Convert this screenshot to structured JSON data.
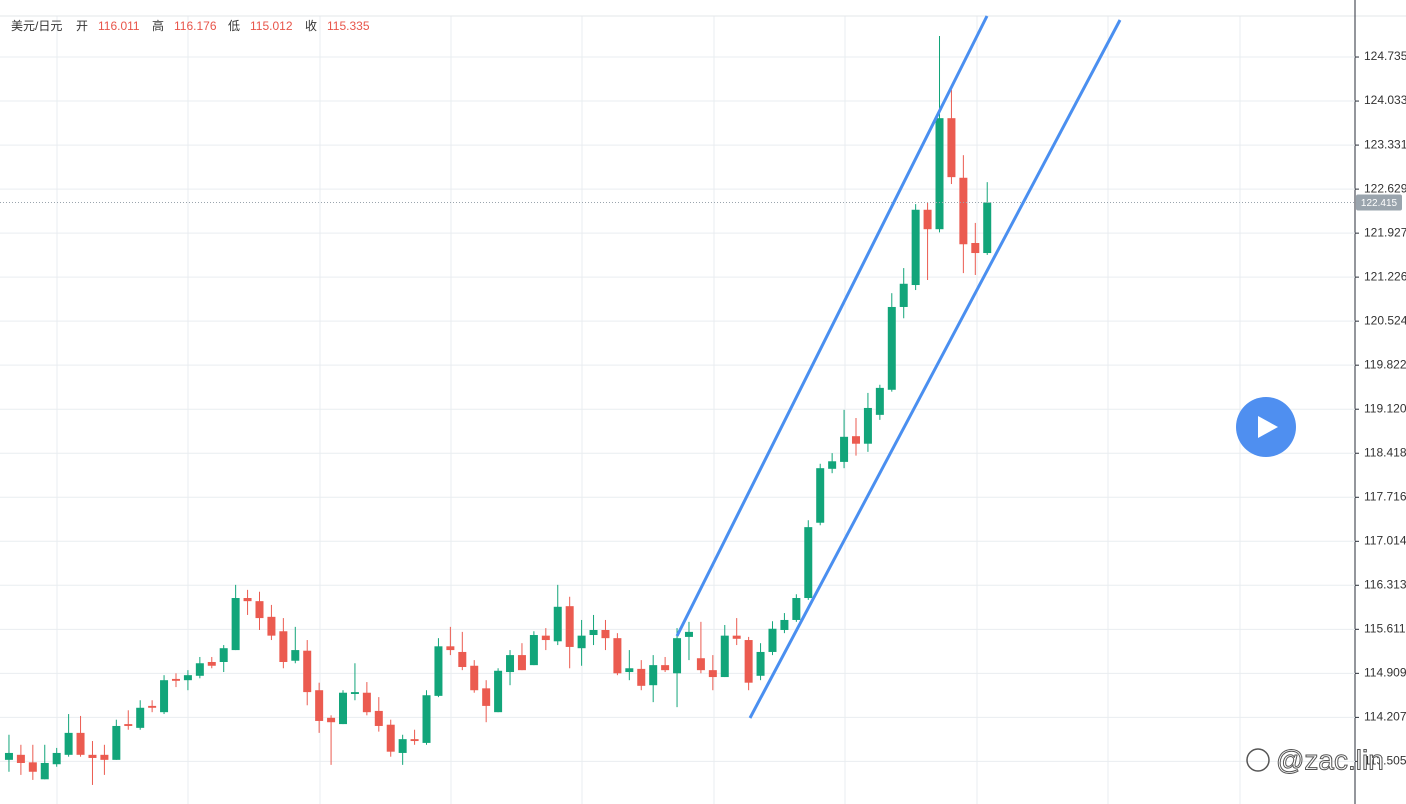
{
  "header": {
    "pair": "美元/日元",
    "fields": [
      {
        "label": "开",
        "value": 116.011
      },
      {
        "label": "高",
        "value": 116.176
      },
      {
        "label": "低",
        "value": 115.012
      },
      {
        "label": "收",
        "value": 115.335
      }
    ]
  },
  "watermark": "@zac.lin",
  "chart_data": {
    "type": "candlestick",
    "up_color": "#12a57a",
    "down_color": "#eb5b50",
    "grid": true,
    "ylim": [
      112.826,
      125.389
    ],
    "yticks": [
      124.735,
      124.033,
      123.331,
      122.629,
      121.927,
      121.226,
      120.524,
      119.822,
      {
        "value": 119.12,
        "label": "119.120"
      },
      118.418,
      117.716,
      117.014,
      116.313,
      115.611,
      114.909,
      114.207,
      113.505
    ],
    "last_price": 122.415,
    "categories": [
      null,
      null,
      null,
      null,
      null,
      null,
      null,
      null,
      null,
      null,
      null,
      null,
      null,
      null,
      null,
      null,
      null,
      null,
      null,
      null,
      null,
      null,
      null,
      null,
      null,
      null,
      null,
      null,
      null,
      null,
      null,
      null,
      null,
      null,
      null,
      null,
      null,
      null,
      null,
      null,
      null,
      null,
      null,
      null,
      null,
      null,
      null,
      null,
      null,
      null,
      null,
      null,
      null,
      null,
      null,
      null,
      null,
      null,
      null,
      null,
      null,
      null,
      null,
      null,
      null,
      null,
      null,
      null,
      null,
      null,
      null,
      null,
      null,
      null,
      null,
      null,
      null,
      null,
      null,
      null,
      null,
      null,
      null
    ],
    "open": [
      113.53,
      113.61,
      113.49,
      113.22,
      113.46,
      113.61,
      113.96,
      113.61,
      113.61,
      113.53,
      114.1,
      114.04,
      114.39,
      114.29,
      114.82,
      114.8,
      114.87,
      115.09,
      115.09,
      115.28,
      116.11,
      116.06,
      115.81,
      115.58,
      115.11,
      115.27,
      114.64,
      114.2,
      114.1,
      114.58,
      114.6,
      114.31,
      114.09,
      113.64,
      113.86,
      113.8,
      114.55,
      115.34,
      115.25,
      115.03,
      114.67,
      114.29,
      114.93,
      115.2,
      115.04,
      115.51,
      115.42,
      115.98,
      115.31,
      115.52,
      115.6,
      115.47,
      114.93,
      114.98,
      114.72,
      115.04,
      114.91,
      115.49,
      115.15,
      114.96,
      114.85,
      115.51,
      115.44,
      114.87,
      115.25,
      115.6,
      115.76,
      116.11,
      117.31,
      118.17,
      118.28,
      118.69,
      118.57,
      119.03,
      119.43,
      120.75,
      121.1,
      122.3,
      121.99,
      123.76,
      122.81,
      121.77,
      121.61
    ],
    "high": [
      113.93,
      113.77,
      113.77,
      113.77,
      113.72,
      114.26,
      114.23,
      113.83,
      113.77,
      114.17,
      114.32,
      114.48,
      114.48,
      114.88,
      114.91,
      114.96,
      115.17,
      115.17,
      115.36,
      116.32,
      116.24,
      116.21,
      116.0,
      115.79,
      115.65,
      115.44,
      114.76,
      114.24,
      114.64,
      115.07,
      114.77,
      114.53,
      114.17,
      113.93,
      114.01,
      114.64,
      115.47,
      115.65,
      115.57,
      115.12,
      114.8,
      114.99,
      115.28,
      115.39,
      115.58,
      115.63,
      116.32,
      116.13,
      115.76,
      115.84,
      115.76,
      115.55,
      115.28,
      115.12,
      115.2,
      115.17,
      115.63,
      115.73,
      115.73,
      115.2,
      115.68,
      115.79,
      115.49,
      115.39,
      115.74,
      115.87,
      116.17,
      117.35,
      118.25,
      118.42,
      119.11,
      118.98,
      119.38,
      119.51,
      120.97,
      121.37,
      122.39,
      122.41,
      125.07,
      124.21,
      123.17,
      122.09,
      122.74
    ],
    "low": [
      113.34,
      113.29,
      113.21,
      113.22,
      113.42,
      113.58,
      113.58,
      113.13,
      113.29,
      113.53,
      114.01,
      114.01,
      114.29,
      114.26,
      114.69,
      114.64,
      114.83,
      114.99,
      114.93,
      115.28,
      115.84,
      115.6,
      115.44,
      114.99,
      115.07,
      114.4,
      113.96,
      113.45,
      114.1,
      114.48,
      114.24,
      113.98,
      113.58,
      113.45,
      113.77,
      113.77,
      114.53,
      115.2,
      114.96,
      114.6,
      114.13,
      114.29,
      114.72,
      114.96,
      115.04,
      115.28,
      115.36,
      114.99,
      115.03,
      115.36,
      115.28,
      114.88,
      114.8,
      114.64,
      114.45,
      114.93,
      114.37,
      115.12,
      114.91,
      114.64,
      114.85,
      115.36,
      114.64,
      114.8,
      115.2,
      115.55,
      115.73,
      116.08,
      117.27,
      118.1,
      118.18,
      118.38,
      118.44,
      118.95,
      119.4,
      120.57,
      121.02,
      121.18,
      121.94,
      122.71,
      121.29,
      121.26,
      121.58
    ],
    "close": [
      113.64,
      113.48,
      113.34,
      113.48,
      113.64,
      113.96,
      113.61,
      113.56,
      113.53,
      114.07,
      114.07,
      114.36,
      114.36,
      114.8,
      114.79,
      114.88,
      115.07,
      115.03,
      115.31,
      116.11,
      116.06,
      115.79,
      115.51,
      115.09,
      115.28,
      114.61,
      114.15,
      114.13,
      114.6,
      114.61,
      114.29,
      114.07,
      113.66,
      113.86,
      113.83,
      114.56,
      115.34,
      115.28,
      115.01,
      114.64,
      114.39,
      114.95,
      115.2,
      114.96,
      115.52,
      115.44,
      115.97,
      115.33,
      115.51,
      115.6,
      115.47,
      114.91,
      114.99,
      114.71,
      115.04,
      114.96,
      115.47,
      115.57,
      114.96,
      114.85,
      115.51,
      115.46,
      114.76,
      115.25,
      115.62,
      115.76,
      116.11,
      117.24,
      118.18,
      118.29,
      118.68,
      118.57,
      119.14,
      119.46,
      120.75,
      121.12,
      122.3,
      121.99,
      123.76,
      122.82,
      121.75,
      121.61,
      122.415
    ]
  }
}
